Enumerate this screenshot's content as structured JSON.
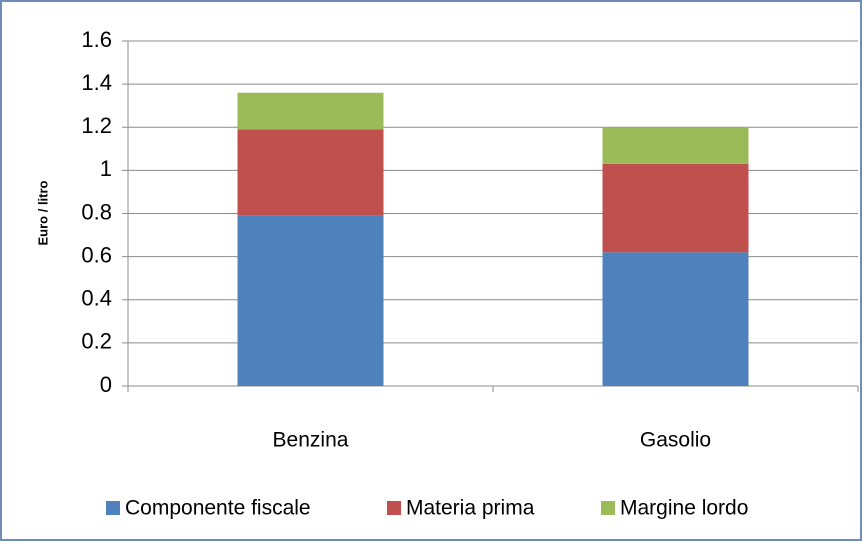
{
  "chart_data": {
    "type": "stacked-bar",
    "y_label": "Euro / litro",
    "categories": [
      "Benzina",
      "Gasolio"
    ],
    "series": [
      {
        "name": "Componente fiscale",
        "color": "#4f81bd",
        "values": [
          0.79,
          0.62
        ]
      },
      {
        "name": "Materia prima",
        "color": "#c0504d",
        "values": [
          0.4,
          0.41
        ]
      },
      {
        "name": "Margine lordo",
        "color": "#9bbb59",
        "values": [
          0.17,
          0.17
        ]
      }
    ],
    "ylim": [
      0,
      1.6
    ],
    "yticks": [
      0,
      0.2,
      0.4,
      0.6,
      0.8,
      1,
      1.2,
      1.4,
      1.6
    ],
    "grid": true,
    "legend": "bottom"
  }
}
